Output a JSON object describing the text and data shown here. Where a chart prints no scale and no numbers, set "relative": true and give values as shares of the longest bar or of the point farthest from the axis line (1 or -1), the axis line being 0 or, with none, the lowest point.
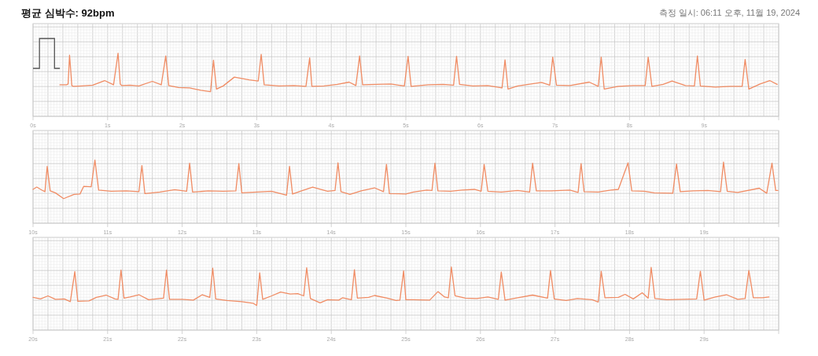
{
  "chart_data": [
    {
      "type": "line",
      "title": "평균 심박수: 92bpm",
      "subtitle": "측정 일시: 06:11 오후, 11월 19, 2024",
      "relative": true,
      "grid": true,
      "color": "#f08c64",
      "xlim": [
        0,
        10
      ],
      "xticks": [
        {
          "value": 0,
          "label": "0s"
        },
        {
          "value": 1,
          "label": "1s"
        },
        {
          "value": 2,
          "label": "2s"
        },
        {
          "value": 3,
          "label": "3s"
        },
        {
          "value": 4,
          "label": "4s"
        },
        {
          "value": 5,
          "label": "5s"
        },
        {
          "value": 6,
          "label": "6s"
        },
        {
          "value": 7,
          "label": "7s"
        },
        {
          "value": 8,
          "label": "8s"
        },
        {
          "value": 9,
          "label": "9s"
        },
        {
          "value": 10,
          "label": null
        }
      ],
      "x": [
        0.36,
        0.45,
        0.47,
        0.49,
        0.52,
        0.54,
        0.65,
        0.8,
        0.96,
        1.08,
        1.14,
        1.17,
        1.19,
        1.3,
        1.42,
        1.6,
        1.72,
        1.78,
        1.82,
        1.95,
        2.1,
        2.25,
        2.38,
        2.42,
        2.46,
        2.55,
        2.7,
        2.9,
        3.02,
        3.06,
        3.1,
        3.3,
        3.5,
        3.66,
        3.71,
        3.74,
        3.9,
        4.08,
        4.24,
        4.33,
        4.38,
        4.42,
        4.6,
        4.8,
        4.98,
        5.03,
        5.07,
        5.3,
        5.5,
        5.64,
        5.68,
        5.72,
        5.9,
        6.1,
        6.29,
        6.33,
        6.37,
        6.5,
        6.82,
        6.93,
        6.97,
        7.02,
        7.2,
        7.46,
        7.58,
        7.62,
        7.66,
        7.85,
        8.05,
        8.21,
        8.25,
        8.3,
        8.45,
        8.57,
        8.75,
        8.87,
        8.91,
        8.95,
        9.15,
        9.35,
        9.51,
        9.55,
        9.6,
        9.75,
        9.88,
        9.98
      ],
      "values": [
        0.18,
        0.18,
        0.2,
        0.95,
        0.16,
        0.14,
        0.15,
        0.17,
        0.29,
        0.18,
        1.0,
        0.2,
        0.16,
        0.17,
        0.15,
        0.27,
        0.18,
        0.93,
        0.16,
        0.11,
        0.1,
        0.04,
        0.0,
        0.82,
        0.07,
        0.15,
        0.38,
        0.31,
        0.28,
        0.97,
        0.18,
        0.15,
        0.16,
        0.14,
        0.88,
        0.14,
        0.15,
        0.19,
        0.25,
        0.16,
        0.93,
        0.18,
        0.19,
        0.2,
        0.15,
        0.92,
        0.14,
        0.18,
        0.19,
        0.17,
        0.92,
        0.19,
        0.15,
        0.16,
        0.1,
        0.83,
        0.07,
        0.15,
        0.24,
        0.17,
        0.9,
        0.17,
        0.16,
        0.25,
        0.14,
        0.9,
        0.07,
        0.14,
        0.16,
        0.16,
        0.9,
        0.14,
        0.19,
        0.28,
        0.16,
        0.15,
        0.93,
        0.15,
        0.12,
        0.14,
        0.14,
        0.84,
        0.07,
        0.2,
        0.29,
        0.19
      ]
    },
    {
      "type": "line",
      "relative": true,
      "grid": true,
      "color": "#f08c64",
      "xlim": [
        10,
        20
      ],
      "xticks": [
        {
          "value": 10,
          "label": "10s"
        },
        {
          "value": 11,
          "label": "11s"
        },
        {
          "value": 12,
          "label": "12s"
        },
        {
          "value": 13,
          "label": "13s"
        },
        {
          "value": 14,
          "label": "14s"
        },
        {
          "value": 15,
          "label": "15s"
        },
        {
          "value": 16,
          "label": "16s"
        },
        {
          "value": 17,
          "label": "17s"
        },
        {
          "value": 18,
          "label": "18s"
        },
        {
          "value": 19,
          "label": "19s"
        },
        {
          "value": 20,
          "label": null
        }
      ],
      "x": [
        10.0,
        10.05,
        10.12,
        10.16,
        10.19,
        10.23,
        10.3,
        10.41,
        10.55,
        10.63,
        10.68,
        10.78,
        10.83,
        10.88,
        11.05,
        11.25,
        11.42,
        11.46,
        11.5,
        11.7,
        11.9,
        12.06,
        12.1,
        12.14,
        12.35,
        12.55,
        12.72,
        12.76,
        12.8,
        13.0,
        13.2,
        13.4,
        13.44,
        13.48,
        13.6,
        13.75,
        13.95,
        14.05,
        14.09,
        14.13,
        14.25,
        14.4,
        14.58,
        14.7,
        14.74,
        14.78,
        15.0,
        15.1,
        15.28,
        15.35,
        15.39,
        15.43,
        15.6,
        15.75,
        15.92,
        16.01,
        16.05,
        16.1,
        16.28,
        16.5,
        16.66,
        16.7,
        16.75,
        16.95,
        17.2,
        17.31,
        17.35,
        17.39,
        17.58,
        17.75,
        17.85,
        17.98,
        18.03,
        18.2,
        18.33,
        18.58,
        18.63,
        18.68,
        18.85,
        19.05,
        19.22,
        19.26,
        19.31,
        19.45,
        19.74,
        19.84,
        19.91,
        19.96,
        19.99
      ],
      "values": [
        0.24,
        0.3,
        0.22,
        0.18,
        0.84,
        0.2,
        0.15,
        0.0,
        0.11,
        0.12,
        0.32,
        0.31,
        1.0,
        0.22,
        0.19,
        0.2,
        0.18,
        0.86,
        0.13,
        0.17,
        0.23,
        0.19,
        0.92,
        0.17,
        0.2,
        0.19,
        0.2,
        0.91,
        0.15,
        0.17,
        0.19,
        0.09,
        0.84,
        0.12,
        0.2,
        0.3,
        0.19,
        0.21,
        0.93,
        0.18,
        0.11,
        0.2,
        0.28,
        0.18,
        0.89,
        0.13,
        0.12,
        0.17,
        0.22,
        0.21,
        0.92,
        0.2,
        0.19,
        0.22,
        0.24,
        0.19,
        0.89,
        0.19,
        0.17,
        0.21,
        0.17,
        0.92,
        0.2,
        0.2,
        0.22,
        0.16,
        0.91,
        0.18,
        0.17,
        0.22,
        0.24,
        0.93,
        0.2,
        0.19,
        0.15,
        0.14,
        0.9,
        0.18,
        0.2,
        0.21,
        0.18,
        0.95,
        0.19,
        0.16,
        0.27,
        0.14,
        0.92,
        0.21,
        0.21
      ]
    },
    {
      "type": "line",
      "relative": true,
      "grid": true,
      "color": "#f08c64",
      "xlim": [
        20,
        30
      ],
      "xticks": [
        {
          "value": 20,
          "label": "20s"
        },
        {
          "value": 21,
          "label": "21s"
        },
        {
          "value": 22,
          "label": "22s"
        },
        {
          "value": 23,
          "label": "23s"
        },
        {
          "value": 24,
          "label": "24s"
        },
        {
          "value": 25,
          "label": "25s"
        },
        {
          "value": 26,
          "label": "26s"
        },
        {
          "value": 27,
          "label": "27s"
        },
        {
          "value": 28,
          "label": "28s"
        },
        {
          "value": 29,
          "label": "29s"
        },
        {
          "value": 30,
          "label": null
        }
      ],
      "x": [
        20.0,
        20.1,
        20.2,
        20.3,
        20.42,
        20.5,
        20.56,
        20.6,
        20.75,
        20.85,
        20.98,
        21.1,
        21.14,
        21.18,
        21.22,
        21.3,
        21.42,
        21.55,
        21.7,
        21.75,
        21.79,
        21.83,
        22.0,
        22.15,
        22.27,
        22.37,
        22.41,
        22.45,
        22.6,
        22.8,
        22.95,
        23.0,
        23.04,
        23.08,
        23.2,
        23.32,
        23.45,
        23.55,
        23.63,
        23.67,
        23.72,
        23.85,
        23.95,
        24.1,
        24.15,
        24.27,
        24.31,
        24.35,
        24.5,
        24.58,
        24.75,
        24.87,
        24.92,
        24.97,
        25.0,
        25.1,
        25.32,
        25.43,
        25.52,
        25.57,
        25.61,
        25.66,
        25.8,
        25.95,
        26.1,
        26.24,
        26.28,
        26.33,
        26.5,
        26.7,
        26.9,
        26.94,
        26.99,
        27.15,
        27.3,
        27.5,
        27.58,
        27.62,
        27.67,
        27.85,
        27.94,
        28.05,
        28.17,
        28.25,
        28.29,
        28.34,
        28.5,
        28.7,
        28.9,
        28.95,
        29.0,
        29.15,
        29.3,
        29.45,
        29.55,
        29.6,
        29.66,
        29.78,
        29.87
      ],
      "values": [
        0.21,
        0.17,
        0.25,
        0.16,
        0.17,
        0.1,
        0.88,
        0.11,
        0.12,
        0.21,
        0.27,
        0.17,
        0.16,
        0.92,
        0.19,
        0.22,
        0.28,
        0.15,
        0.18,
        0.19,
        0.92,
        0.16,
        0.16,
        0.14,
        0.28,
        0.21,
        0.97,
        0.17,
        0.13,
        0.1,
        0.06,
        0.0,
        0.85,
        0.16,
        0.25,
        0.35,
        0.3,
        0.31,
        0.25,
        0.98,
        0.18,
        0.07,
        0.15,
        0.14,
        0.2,
        0.15,
        0.93,
        0.19,
        0.21,
        0.26,
        0.19,
        0.13,
        0.14,
        0.9,
        0.15,
        0.15,
        0.14,
        0.36,
        0.22,
        0.2,
        1.0,
        0.25,
        0.19,
        0.18,
        0.22,
        0.16,
        0.87,
        0.14,
        0.2,
        0.27,
        0.19,
        0.91,
        0.17,
        0.13,
        0.18,
        0.15,
        0.09,
        0.89,
        0.2,
        0.21,
        0.29,
        0.17,
        0.33,
        0.19,
        0.99,
        0.18,
        0.15,
        0.16,
        0.17,
        0.89,
        0.14,
        0.22,
        0.28,
        0.16,
        0.18,
        0.91,
        0.2,
        0.2,
        0.22
      ]
    }
  ]
}
